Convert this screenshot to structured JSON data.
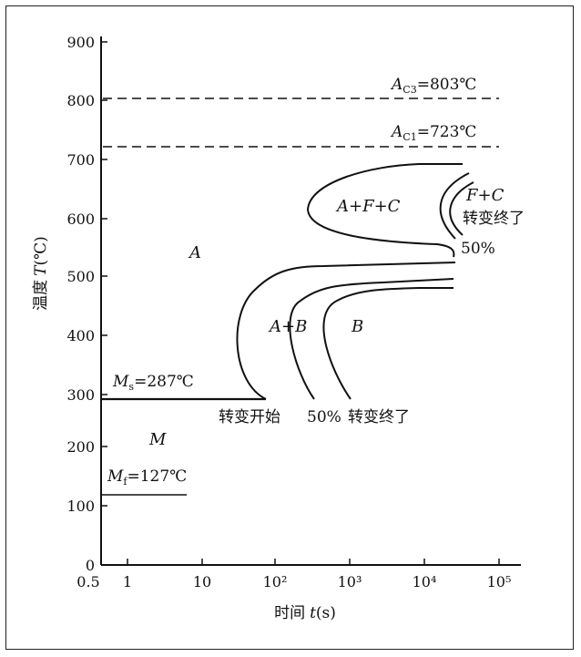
{
  "y_axis": {
    "label_prefix": "温度",
    "label_var": "T",
    "label_unit": "(℃)",
    "ticks": [
      {
        "value": 0,
        "label": "0"
      },
      {
        "value": 100,
        "label": "100"
      },
      {
        "value": 200,
        "label": "200"
      },
      {
        "value": 300,
        "label": "300"
      },
      {
        "value": 400,
        "label": "400"
      },
      {
        "value": 500,
        "label": "500"
      },
      {
        "value": 600,
        "label": "600"
      },
      {
        "value": 700,
        "label": "700"
      },
      {
        "value": 800,
        "label": "800"
      },
      {
        "value": 900,
        "label": "900"
      }
    ]
  },
  "x_axis": {
    "label_prefix": "时间",
    "label_var": "t",
    "label_unit": "(s)",
    "ticks": [
      {
        "value": 0.5,
        "label": "0.5"
      },
      {
        "value": 1,
        "label": "1"
      },
      {
        "value": 10,
        "label": "10"
      },
      {
        "value": 100,
        "label": "10²"
      },
      {
        "value": 1000,
        "label": "10³"
      },
      {
        "value": 10000,
        "label": "10⁴"
      },
      {
        "value": 100000,
        "label": "10⁵"
      }
    ]
  },
  "lines": {
    "ac3": {
      "sym": "A",
      "sub": "C3",
      "value_text": "=803℃",
      "temp": 803
    },
    "ac1": {
      "sym": "A",
      "sub": "C1",
      "value_text": "=723℃",
      "temp": 723
    },
    "ms": {
      "sym": "M",
      "sub": "s",
      "value_text": "=287℃",
      "temp": 287
    },
    "mf": {
      "sym": "M",
      "sub": "f",
      "value_text": "=127℃",
      "temp": 127
    }
  },
  "regions": {
    "a": "A",
    "m": "M",
    "afc": "A+F+C",
    "fc": "F+C",
    "ab": "A+B",
    "b": "B"
  },
  "labels": {
    "transform_start": "转变开始",
    "fifty_pct_low": "50%",
    "transform_end_low": "转变终了",
    "fifty_pct_high": "50%",
    "transform_end_high": "转变终了"
  }
}
